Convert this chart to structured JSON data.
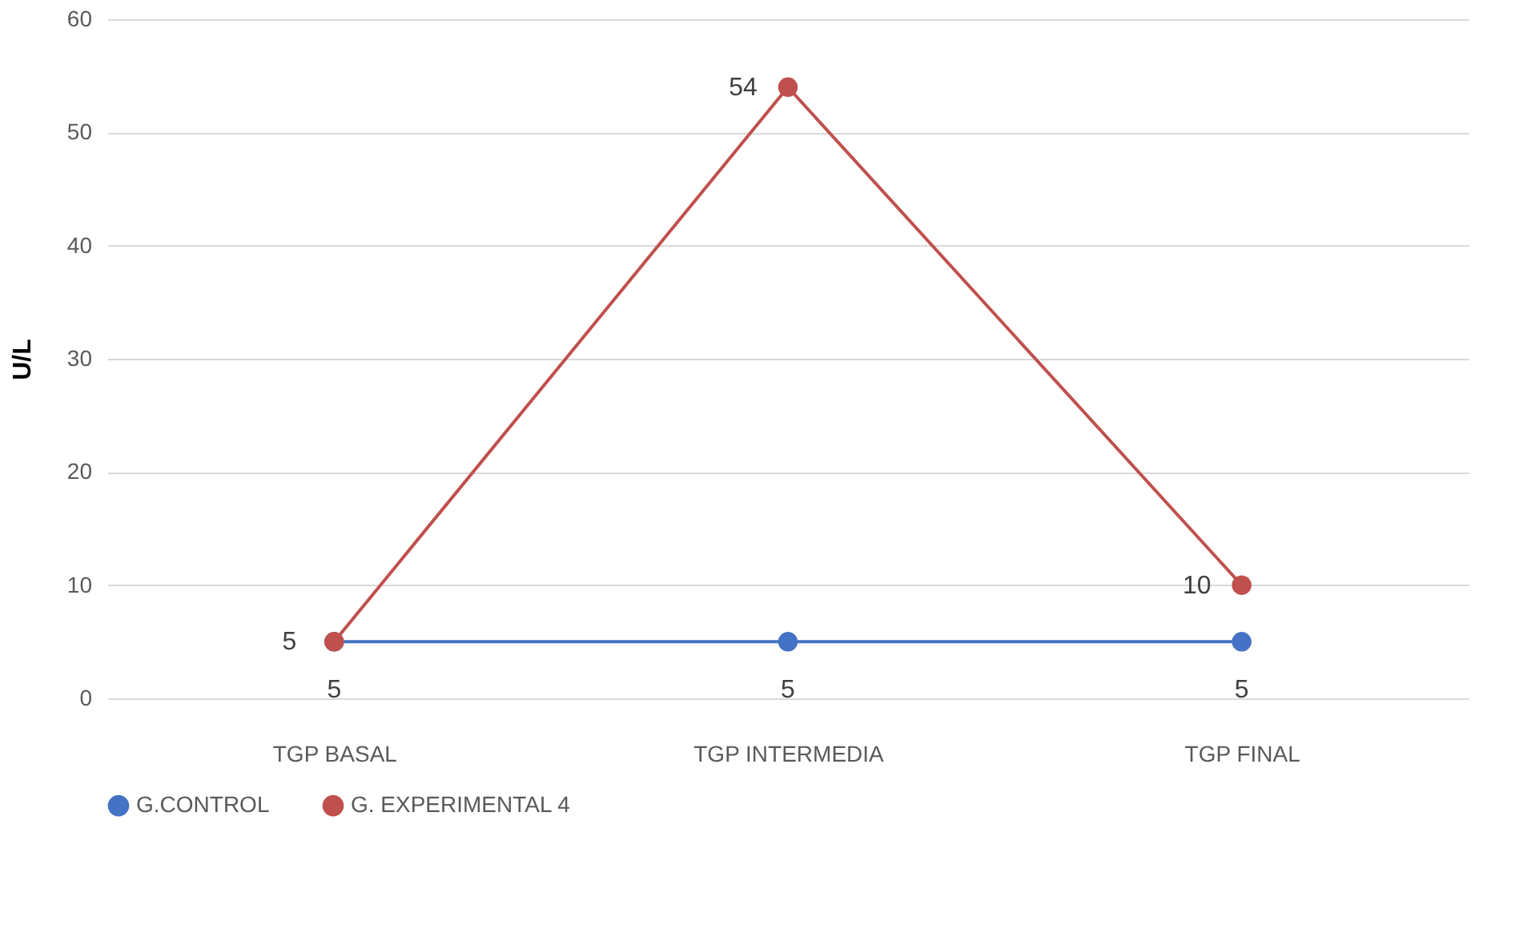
{
  "chart_data": {
    "type": "line",
    "ylabel": "U/L",
    "categories": [
      "TGP BASAL",
      "TGP INTERMEDIA",
      "TGP FINAL"
    ],
    "series": [
      {
        "name": "G.CONTROL",
        "color": "#4472c4",
        "values": [
          5,
          5,
          5
        ]
      },
      {
        "name": "G. EXPERIMENTAL 4",
        "color": "#c0504d",
        "values": [
          5,
          54,
          10
        ]
      }
    ],
    "ylim": [
      0,
      60
    ],
    "yticks": [
      0,
      10,
      20,
      30,
      40,
      50,
      60
    ],
    "grid": "y",
    "legend": "bottom",
    "marker": "circle",
    "line_style": "solid",
    "data_labels": true
  }
}
